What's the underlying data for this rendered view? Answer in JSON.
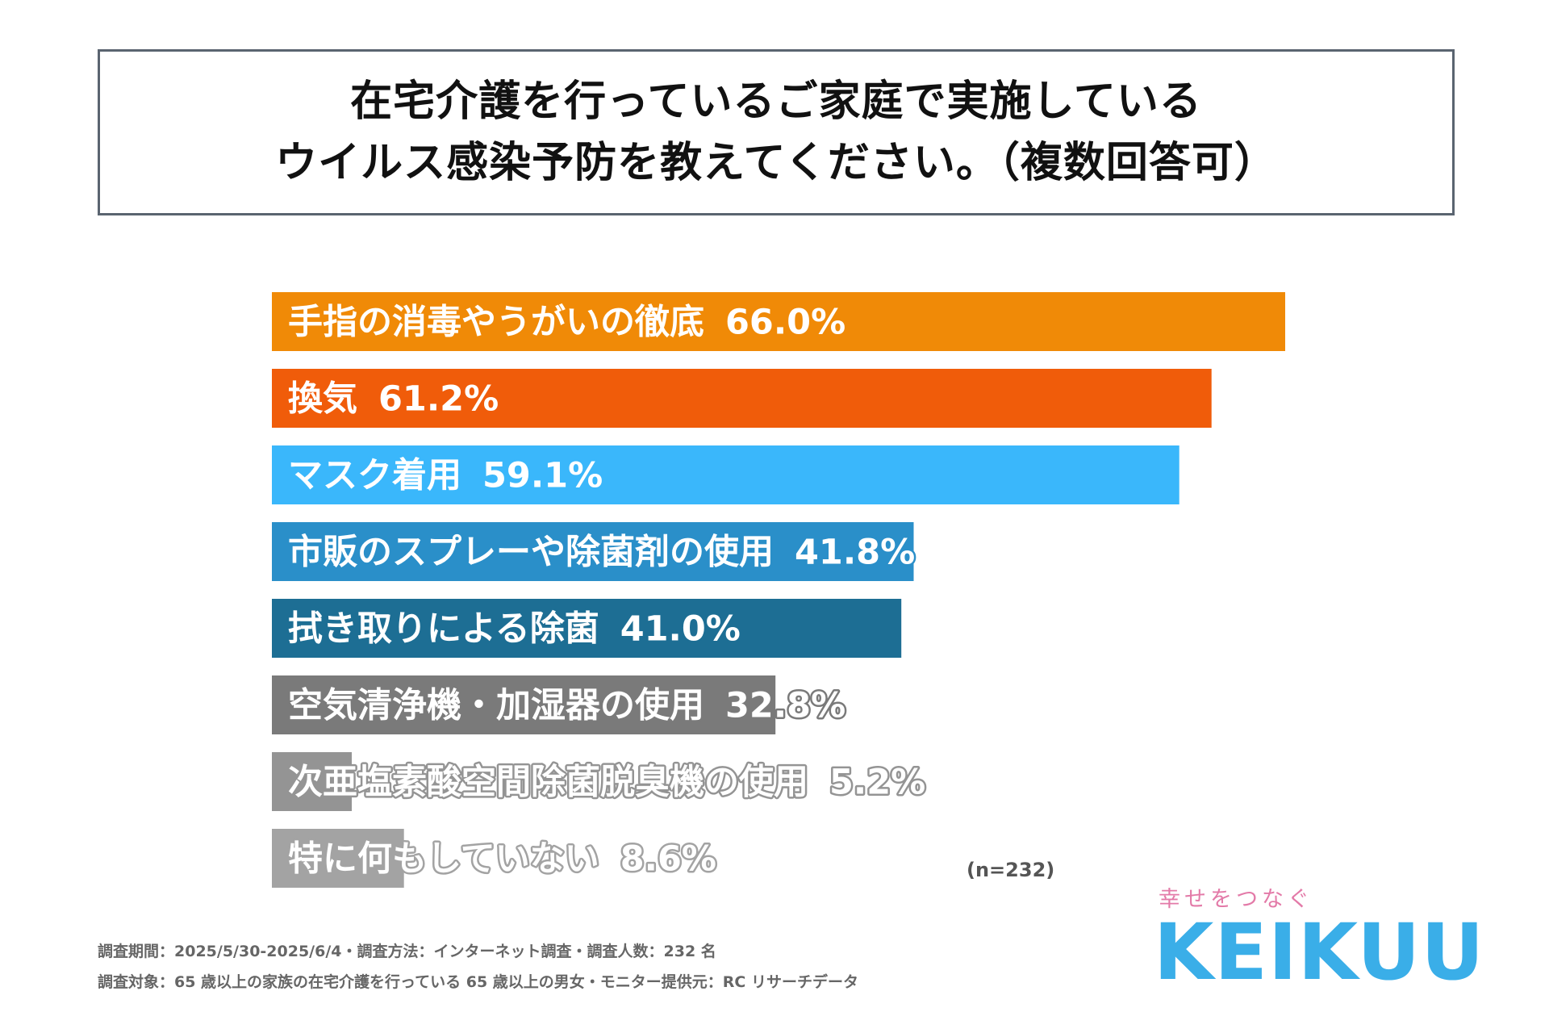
{
  "title": {
    "line1": "在宅介護を行っているご家庭で実施している",
    "line2": "ウイルス感染予防を教えてください。（複数回答可）"
  },
  "chart_data": {
    "type": "bar",
    "orientation": "horizontal",
    "title": "在宅介護を行っているご家庭で実施しているウイルス感染予防を教えてください。（複数回答可）",
    "unit": "%",
    "categories": [
      "手指の消毒やうがいの徹底",
      "換気",
      "マスク着用",
      "市販のスプレーや除菌剤の使用",
      "拭き取りによる除菌",
      "空気清浄機・加湿器の使用",
      "次亜塩素酸空間除菌脱臭機の使用",
      "特に何もしていない"
    ],
    "values": [
      66.0,
      61.2,
      59.1,
      41.8,
      41.0,
      32.8,
      5.2,
      8.6
    ],
    "value_labels": [
      "66.0%",
      "61.2%",
      "59.1%",
      "41.8%",
      "41.0%",
      "32.8%",
      "5.2%",
      "8.6%"
    ],
    "colors": [
      "#f08a07",
      "#f05c0a",
      "#3ab7fb",
      "#2a8fc9",
      "#1d6e94",
      "#7a7a7a",
      "#949494",
      "#a3a3a3"
    ],
    "xlim": [
      0,
      66.0
    ],
    "grid": false,
    "legend": "none",
    "sample_size": "(n=232)"
  },
  "footer": {
    "line1": "調査期間：2025/5/30-2025/6/4・調査方法：インターネット調査・調査人数：232 名",
    "line2": "調査対象：65 歳以上の家族の在宅介護を行っている 65 歳以上の男女・モニター提供元：RC リサーチデータ"
  },
  "logo": {
    "tagline": "幸せをつなぐ",
    "wordmark": "KEIKUU",
    "tagline_color": "#e37aa8",
    "wordmark_color": "#3aaee8"
  }
}
